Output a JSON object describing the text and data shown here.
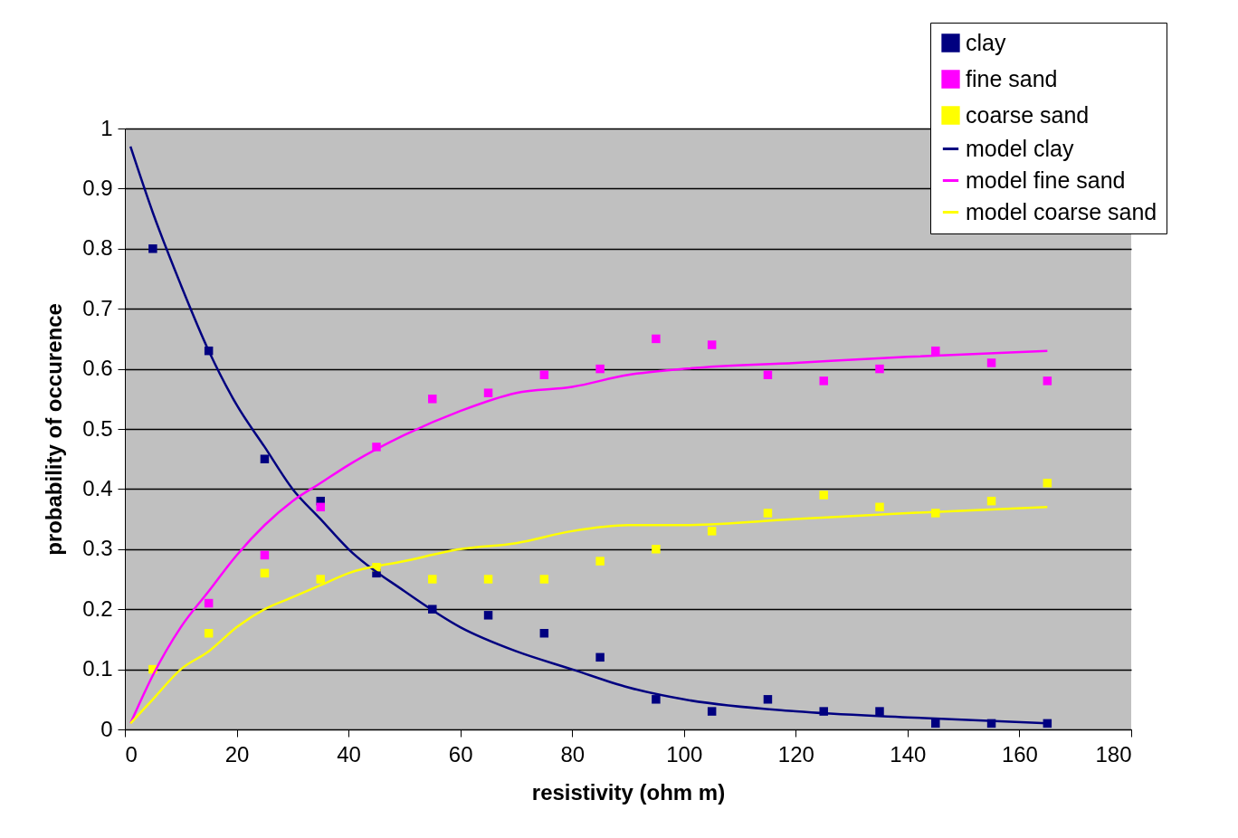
{
  "chart_data": {
    "type": "scatter",
    "xlabel": "resistivity (ohm m)",
    "ylabel": "probability of occurence",
    "xlim": [
      0,
      180
    ],
    "xticks": [
      0,
      20,
      40,
      60,
      80,
      100,
      120,
      140,
      160,
      180
    ],
    "ylim": [
      0,
      1
    ],
    "yticks": [
      0,
      0.1,
      0.2,
      0.3,
      0.4,
      0.5,
      0.6,
      0.7,
      0.8,
      0.9,
      1
    ],
    "grid": "y",
    "legend": "top right",
    "line_style": "solid",
    "series": [
      {
        "name": "clay",
        "marker": "square",
        "color": "#000080",
        "x": [
          5,
          15,
          25,
          35,
          45,
          55,
          65,
          75,
          85,
          95,
          105,
          115,
          125,
          135,
          145,
          155,
          165
        ],
        "values": [
          0.8,
          0.63,
          0.45,
          0.38,
          0.26,
          0.2,
          0.19,
          0.16,
          0.12,
          0.05,
          0.03,
          0.05,
          0.03,
          0.03,
          0.01,
          0.01,
          0.01
        ]
      },
      {
        "name": "fine sand",
        "marker": "square",
        "color": "#ff00ff",
        "x": [
          15,
          25,
          35,
          45,
          55,
          65,
          75,
          85,
          95,
          105,
          115,
          125,
          135,
          145,
          155,
          165
        ],
        "values": [
          0.21,
          0.29,
          0.37,
          0.47,
          0.55,
          0.56,
          0.59,
          0.6,
          0.65,
          0.64,
          0.59,
          0.58,
          0.6,
          0.63,
          0.61,
          0.58
        ]
      },
      {
        "name": "coarse sand",
        "marker": "square",
        "color": "#ffff00",
        "x": [
          5,
          15,
          25,
          35,
          45,
          55,
          65,
          75,
          85,
          95,
          105,
          115,
          125,
          135,
          145,
          155,
          165
        ],
        "values": [
          0.1,
          0.16,
          0.26,
          0.25,
          0.27,
          0.25,
          0.25,
          0.25,
          0.28,
          0.3,
          0.33,
          0.36,
          0.39,
          0.37,
          0.36,
          0.38,
          0.41
        ]
      },
      {
        "name": "model clay",
        "type": "line",
        "color": "#000080",
        "x": [
          1,
          5,
          10,
          15,
          20,
          25,
          30,
          35,
          40,
          50,
          60,
          70,
          80,
          90,
          100,
          120,
          140,
          165
        ],
        "values": [
          0.97,
          0.86,
          0.74,
          0.63,
          0.54,
          0.47,
          0.4,
          0.35,
          0.3,
          0.23,
          0.17,
          0.13,
          0.1,
          0.07,
          0.05,
          0.03,
          0.02,
          0.01
        ]
      },
      {
        "name": "model fine sand",
        "type": "line",
        "color": "#ff00ff",
        "x": [
          1,
          5,
          10,
          15,
          20,
          25,
          30,
          35,
          40,
          50,
          60,
          70,
          80,
          90,
          100,
          120,
          140,
          165
        ],
        "values": [
          0.01,
          0.09,
          0.17,
          0.23,
          0.29,
          0.34,
          0.38,
          0.41,
          0.44,
          0.49,
          0.53,
          0.56,
          0.57,
          0.59,
          0.6,
          0.61,
          0.62,
          0.63
        ]
      },
      {
        "name": "model coarse sand",
        "type": "line",
        "color": "#ffff00",
        "x": [
          1,
          5,
          10,
          15,
          20,
          25,
          30,
          35,
          40,
          50,
          60,
          70,
          80,
          90,
          100,
          120,
          140,
          165
        ],
        "values": [
          0.01,
          0.05,
          0.1,
          0.13,
          0.17,
          0.2,
          0.22,
          0.24,
          0.26,
          0.28,
          0.3,
          0.31,
          0.33,
          0.34,
          0.34,
          0.35,
          0.36,
          0.37
        ]
      }
    ]
  }
}
